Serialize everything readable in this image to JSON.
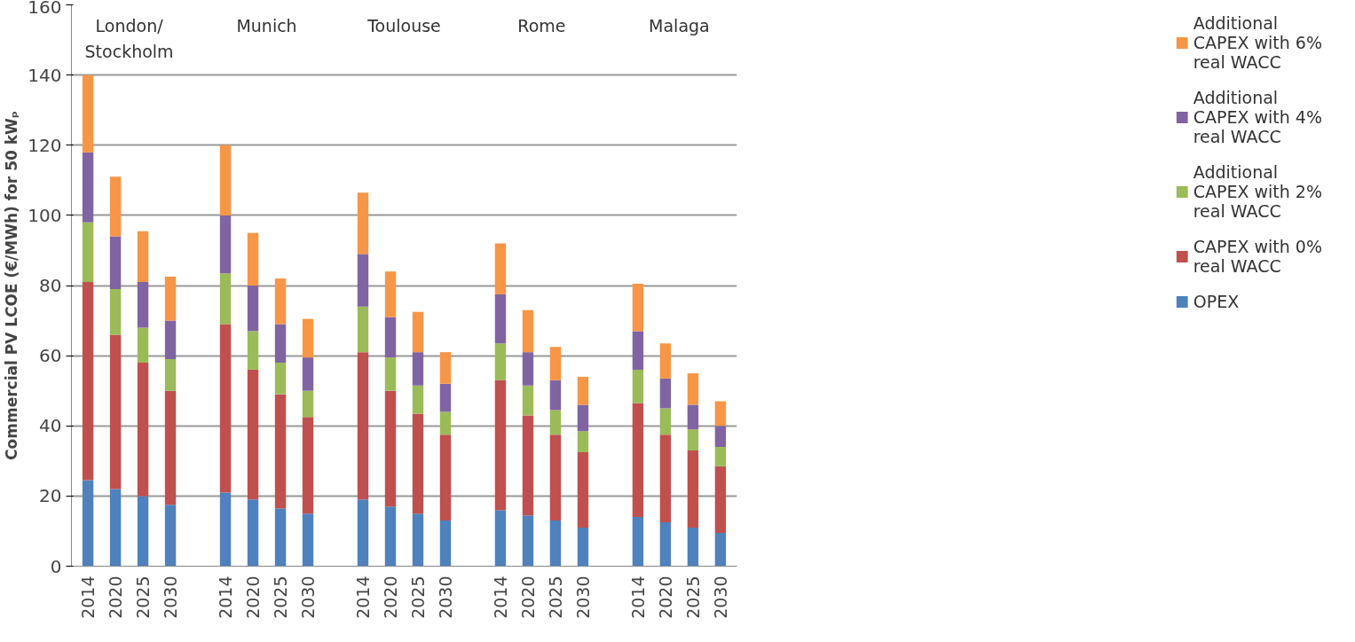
{
  "chart_data": {
    "type": "bar",
    "stacked": true,
    "ylabel": "Commercial PV LCOE (€/MWh) for 50 kWₚ",
    "categories": [
      "2014",
      "2020",
      "2025",
      "2030",
      null,
      "2014",
      "2020",
      "2025",
      "2030",
      null,
      "2014",
      "2020",
      "2025",
      "2030",
      null,
      "2014",
      "2020",
      "2025",
      "2030",
      null,
      "2014",
      "2020",
      "2025",
      "2030"
    ],
    "annotations": [
      "London/\nStockholm",
      "Munich",
      "Toulouse",
      "Rome",
      "Malaga"
    ],
    "series": [
      {
        "name": "OPEX",
        "color": "#4f81bd",
        "values": [
          24.5,
          22,
          20,
          17.5,
          null,
          21,
          19,
          16.5,
          15,
          null,
          19,
          17,
          15,
          13,
          null,
          16,
          14.5,
          13,
          11,
          null,
          14,
          12.5,
          11,
          9.5
        ]
      },
      {
        "name": "CAPEX with 0% real WACC",
        "color": "#c0504d",
        "values": [
          56.5,
          44,
          38,
          32.5,
          null,
          48,
          37,
          32.5,
          27.5,
          null,
          42,
          33,
          28.5,
          24.5,
          null,
          37,
          28.5,
          24.5,
          21.5,
          null,
          32.5,
          25,
          22,
          19
        ]
      },
      {
        "name": "Additional CAPEX with 2% real WACC",
        "color": "#9bbb59",
        "values": [
          17,
          13,
          10,
          9,
          null,
          14.5,
          11,
          9,
          7.5,
          null,
          13,
          9.5,
          8,
          6.5,
          null,
          10.5,
          8.5,
          7,
          6,
          null,
          9.5,
          7.5,
          6,
          5.5
        ]
      },
      {
        "name": "Additional CAPEX with 4% real WACC",
        "color": "#8064a2",
        "values": [
          20,
          15,
          13,
          11,
          null,
          16.5,
          13,
          11,
          9.5,
          null,
          15,
          11.5,
          9.5,
          8,
          null,
          14,
          9.5,
          8.5,
          7.5,
          null,
          11,
          8.5,
          7,
          6
        ]
      },
      {
        "name": "Additional CAPEX with 6% real WACC",
        "color": "#f79646",
        "values": [
          22,
          17,
          14.5,
          12.5,
          null,
          20,
          15,
          13,
          11,
          null,
          17.5,
          13,
          11.5,
          9,
          null,
          14.5,
          12,
          9.5,
          8,
          null,
          13.5,
          10,
          9,
          7
        ]
      }
    ],
    "ylim": [
      0,
      160
    ],
    "yticks": [
      0,
      20,
      40,
      60,
      80,
      100,
      120,
      140,
      160
    ],
    "grid": "y",
    "legend": "right"
  }
}
